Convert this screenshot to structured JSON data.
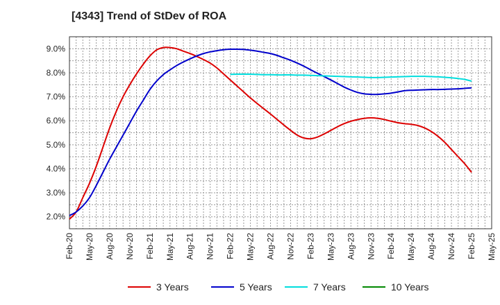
{
  "chart_data": {
    "type": "line",
    "title": "[4343]  Trend of StDev of ROA",
    "xlabel": "",
    "ylabel": "",
    "x_ticks": [
      "Feb-20",
      "May-20",
      "Aug-20",
      "Nov-20",
      "Feb-21",
      "May-21",
      "Aug-21",
      "Nov-21",
      "Feb-22",
      "May-22",
      "Aug-22",
      "Nov-22",
      "Feb-23",
      "May-23",
      "Aug-23",
      "Nov-23",
      "Feb-24",
      "May-24",
      "Aug-24",
      "Nov-24",
      "Feb-25",
      "May-25"
    ],
    "y_ticks": [
      "2.0%",
      "3.0%",
      "4.0%",
      "5.0%",
      "6.0%",
      "7.0%",
      "8.0%",
      "9.0%"
    ],
    "ylim": [
      1.5,
      9.5
    ],
    "grid": true,
    "legend_position": "bottom",
    "series": [
      {
        "name": "3 Years",
        "color": "#dd0000",
        "x": [
          "Feb-20",
          "Mar-20",
          "Apr-20",
          "May-20",
          "Jun-20",
          "Jul-20",
          "Aug-20",
          "Sep-20",
          "Oct-20",
          "Nov-20",
          "Dec-20",
          "Jan-21",
          "Feb-21",
          "Mar-21",
          "Apr-21",
          "May-21",
          "Jun-21",
          "Jul-21",
          "Aug-21",
          "Sep-21",
          "Oct-21",
          "Nov-21",
          "Dec-21",
          "Jan-22",
          "Feb-22",
          "Mar-22",
          "Apr-22",
          "May-22",
          "Jun-22",
          "Jul-22",
          "Aug-22",
          "Sep-22",
          "Oct-22",
          "Nov-22",
          "Dec-22",
          "Jan-23",
          "Feb-23",
          "Mar-23",
          "Apr-23",
          "May-23",
          "Jun-23",
          "Jul-23",
          "Aug-23",
          "Sep-23",
          "Oct-23",
          "Nov-23",
          "Dec-23",
          "Jan-24",
          "Feb-24",
          "Mar-24",
          "Apr-24",
          "May-24",
          "Jun-24",
          "Jul-24",
          "Aug-24",
          "Sep-24",
          "Oct-24",
          "Nov-24",
          "Dec-24",
          "Jan-25",
          "Feb-25"
        ],
        "values": [
          1.9,
          2.2,
          2.8,
          3.4,
          4.1,
          4.9,
          5.7,
          6.4,
          7.0,
          7.5,
          7.95,
          8.35,
          8.7,
          8.95,
          9.05,
          9.05,
          9.0,
          8.9,
          8.8,
          8.68,
          8.55,
          8.4,
          8.2,
          7.95,
          7.7,
          7.45,
          7.2,
          6.95,
          6.72,
          6.5,
          6.28,
          6.05,
          5.82,
          5.6,
          5.4,
          5.28,
          5.25,
          5.32,
          5.45,
          5.6,
          5.75,
          5.88,
          5.98,
          6.05,
          6.1,
          6.12,
          6.1,
          6.05,
          5.98,
          5.92,
          5.88,
          5.85,
          5.8,
          5.7,
          5.55,
          5.35,
          5.1,
          4.8,
          4.5,
          4.2,
          3.85
        ]
      },
      {
        "name": "5 Years",
        "color": "#0000cc",
        "x": [
          "Feb-20",
          "Mar-20",
          "Apr-20",
          "May-20",
          "Jun-20",
          "Jul-20",
          "Aug-20",
          "Sep-20",
          "Oct-20",
          "Nov-20",
          "Dec-20",
          "Jan-21",
          "Feb-21",
          "Mar-21",
          "Apr-21",
          "May-21",
          "Jun-21",
          "Jul-21",
          "Aug-21",
          "Sep-21",
          "Oct-21",
          "Nov-21",
          "Dec-21",
          "Jan-22",
          "Feb-22",
          "Mar-22",
          "Apr-22",
          "May-22",
          "Jun-22",
          "Jul-22",
          "Aug-22",
          "Sep-22",
          "Oct-22",
          "Nov-22",
          "Dec-22",
          "Jan-23",
          "Feb-23",
          "Mar-23",
          "Apr-23",
          "May-23",
          "Jun-23",
          "Jul-23",
          "Aug-23",
          "Sep-23",
          "Oct-23",
          "Nov-23",
          "Dec-23",
          "Jan-24",
          "Feb-24",
          "Mar-24",
          "Apr-24",
          "May-24",
          "Jun-24",
          "Jul-24",
          "Aug-24",
          "Sep-24",
          "Oct-24",
          "Nov-24",
          "Dec-24",
          "Jan-25",
          "Feb-25"
        ],
        "values": [
          2.05,
          2.2,
          2.45,
          2.8,
          3.3,
          3.85,
          4.4,
          4.9,
          5.4,
          5.9,
          6.4,
          6.85,
          7.3,
          7.65,
          7.92,
          8.12,
          8.3,
          8.45,
          8.58,
          8.7,
          8.8,
          8.87,
          8.92,
          8.96,
          8.98,
          8.98,
          8.97,
          8.94,
          8.9,
          8.85,
          8.8,
          8.72,
          8.62,
          8.52,
          8.4,
          8.27,
          8.12,
          7.98,
          7.84,
          7.7,
          7.55,
          7.4,
          7.28,
          7.18,
          7.12,
          7.1,
          7.1,
          7.12,
          7.15,
          7.2,
          7.25,
          7.27,
          7.28,
          7.29,
          7.3,
          7.3,
          7.31,
          7.32,
          7.33,
          7.35,
          7.37
        ]
      },
      {
        "name": "7 Years",
        "color": "#00dddd",
        "x": [
          "Feb-22",
          "Mar-22",
          "Apr-22",
          "May-22",
          "Jun-22",
          "Jul-22",
          "Aug-22",
          "Sep-22",
          "Oct-22",
          "Nov-22",
          "Dec-22",
          "Jan-23",
          "Feb-23",
          "Mar-23",
          "Apr-23",
          "May-23",
          "Jun-23",
          "Jul-23",
          "Aug-23",
          "Sep-23",
          "Oct-23",
          "Nov-23",
          "Dec-23",
          "Jan-24",
          "Feb-24",
          "Mar-24",
          "Apr-24",
          "May-24",
          "Jun-24",
          "Jul-24",
          "Aug-24",
          "Sep-24",
          "Oct-24",
          "Nov-24",
          "Dec-24",
          "Jan-25",
          "Feb-25"
        ],
        "values": [
          7.93,
          7.94,
          7.94,
          7.94,
          7.93,
          7.92,
          7.92,
          7.91,
          7.91,
          7.91,
          7.9,
          7.9,
          7.89,
          7.88,
          7.87,
          7.86,
          7.85,
          7.84,
          7.83,
          7.82,
          7.81,
          7.8,
          7.8,
          7.81,
          7.82,
          7.83,
          7.84,
          7.85,
          7.85,
          7.85,
          7.84,
          7.83,
          7.81,
          7.79,
          7.76,
          7.72,
          7.65
        ]
      },
      {
        "name": "10 Years",
        "color": "#008800",
        "x": [],
        "values": []
      }
    ]
  }
}
